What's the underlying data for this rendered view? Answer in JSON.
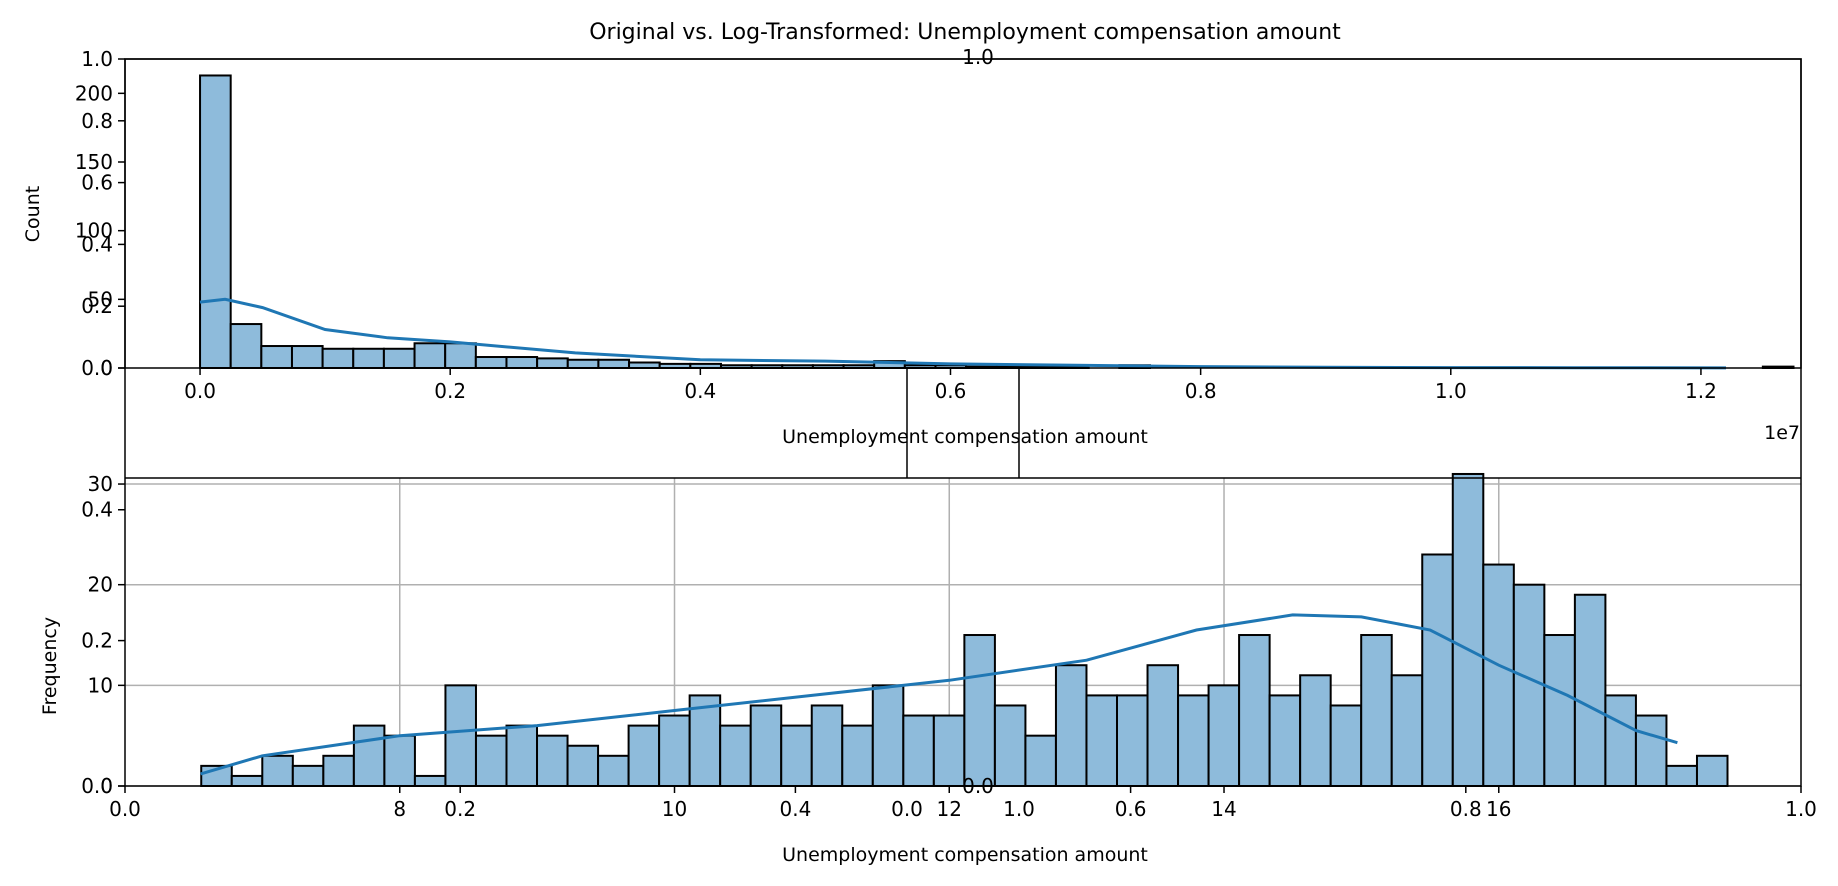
{
  "figure": {
    "title": "Original vs. Log-Transformed: Unemployment compensation amount",
    "overlay_axes": {
      "upper": {
        "left_ticks": [
          "0.0",
          "0.2",
          "0.4",
          "0.6",
          "0.8",
          "1.0"
        ],
        "top_ticks": [
          "0.0",
          "1.0"
        ]
      },
      "lower": {
        "left_ticks": [
          "0.0",
          "0.2",
          "0.4"
        ],
        "bottom_ticks": [
          "0.0",
          "0.2",
          "0.4",
          "0.6",
          "0.8",
          "1.0"
        ],
        "bottom_centered_ticks": [
          "0.0",
          "1.0"
        ]
      }
    }
  },
  "chart_data": [
    {
      "type": "bar",
      "panel": "original",
      "xlabel": "Unemployment compensation amount",
      "ylabel": "Count",
      "x_offset_label": "1e7",
      "xlim": [
        -0.06,
        1.28
      ],
      "ylim": [
        0,
        225
      ],
      "xticks": [
        0.0,
        0.2,
        0.4,
        0.6,
        0.8,
        1.0,
        1.2
      ],
      "xtick_labels": [
        "0.0",
        "0.2",
        "0.4",
        "0.6",
        "0.8",
        "1.0",
        "1.2"
      ],
      "yticks": [
        0,
        50,
        100,
        150,
        200
      ],
      "ytick_labels": [
        "0",
        "50",
        "100",
        "150",
        "200"
      ],
      "grid": false,
      "bin_start": 0.0,
      "bin_width": 0.0245,
      "values": [
        213,
        32,
        16,
        16,
        14,
        14,
        14,
        18,
        18,
        8,
        8,
        7,
        6,
        6,
        4,
        3,
        3,
        2,
        2,
        2,
        2,
        2,
        5,
        2,
        2,
        1,
        1,
        1,
        1,
        0,
        2,
        0,
        0,
        0,
        0,
        0,
        0,
        0,
        0,
        0,
        0,
        0,
        0,
        0,
        0,
        0,
        0,
        0,
        0,
        0,
        0,
        1,
        0,
        0,
        1
      ],
      "kde": {
        "x": [
          0.0,
          0.02,
          0.05,
          0.1,
          0.15,
          0.2,
          0.3,
          0.4,
          0.5,
          0.6,
          0.7,
          0.8,
          0.9,
          1.0,
          1.1,
          1.22
        ],
        "y": [
          48,
          50,
          44,
          28,
          22,
          19,
          11,
          6,
          5,
          3,
          2,
          1,
          0.5,
          0.3,
          0.2,
          0.1
        ]
      }
    },
    {
      "type": "bar",
      "panel": "log-transformed",
      "xlabel": "Unemployment compensation amount",
      "ylabel": "Frequency",
      "xlim": [
        6.0,
        18.2
      ],
      "ylim": [
        0,
        30.6
      ],
      "xticks": [
        8,
        10,
        12,
        14,
        16
      ],
      "xtick_labels": [
        "8",
        "10",
        "12",
        "14",
        "16"
      ],
      "yticks": [
        0,
        10,
        20,
        30
      ],
      "ytick_labels": [
        "0",
        "10",
        "20",
        "30"
      ],
      "grid": true,
      "bin_start": 6.555,
      "bin_width": 0.2222,
      "values": [
        2,
        1,
        3,
        2,
        3,
        6,
        5,
        1,
        10,
        5,
        6,
        5,
        4,
        3,
        6,
        7,
        9,
        6,
        8,
        6,
        8,
        6,
        10,
        7,
        7,
        15,
        8,
        5,
        12,
        9,
        9,
        12,
        9,
        10,
        15,
        9,
        11,
        8,
        15,
        11,
        23,
        31,
        22,
        20,
        15,
        19,
        9,
        7,
        2,
        3
      ],
      "kde": {
        "x": [
          6.55,
          7.0,
          8.0,
          9.0,
          10.0,
          11.0,
          12.0,
          13.0,
          13.8,
          14.5,
          15.0,
          15.5,
          16.0,
          16.5,
          17.0,
          17.3
        ],
        "y": [
          1.2,
          3.0,
          5.0,
          6.0,
          7.5,
          9.0,
          10.5,
          12.5,
          15.5,
          17.0,
          16.8,
          15.5,
          12.0,
          9.0,
          5.5,
          4.3
        ]
      }
    }
  ]
}
